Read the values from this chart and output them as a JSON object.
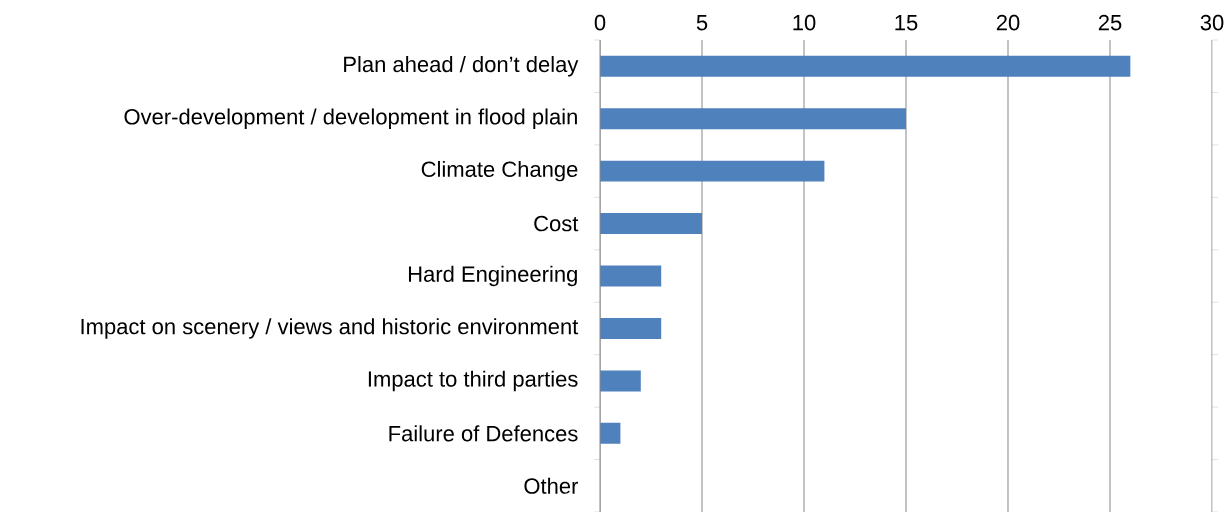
{
  "chart_data": {
    "type": "bar",
    "orientation": "horizontal",
    "categories": [
      "Plan ahead / don’t delay",
      "Over-development / development in flood plain",
      "Climate Change",
      "Cost",
      "Hard Engineering",
      "Impact on scenery / views and historic environment",
      "Impact to third parties",
      "Failure of Defences",
      "Other"
    ],
    "values": [
      26,
      15,
      11,
      5,
      3,
      3,
      2,
      1,
      0
    ],
    "color": "#4f81bd",
    "xlim": [
      0,
      30
    ],
    "xticks": [
      0,
      5,
      10,
      15,
      20,
      25,
      30
    ],
    "grid": "x"
  }
}
